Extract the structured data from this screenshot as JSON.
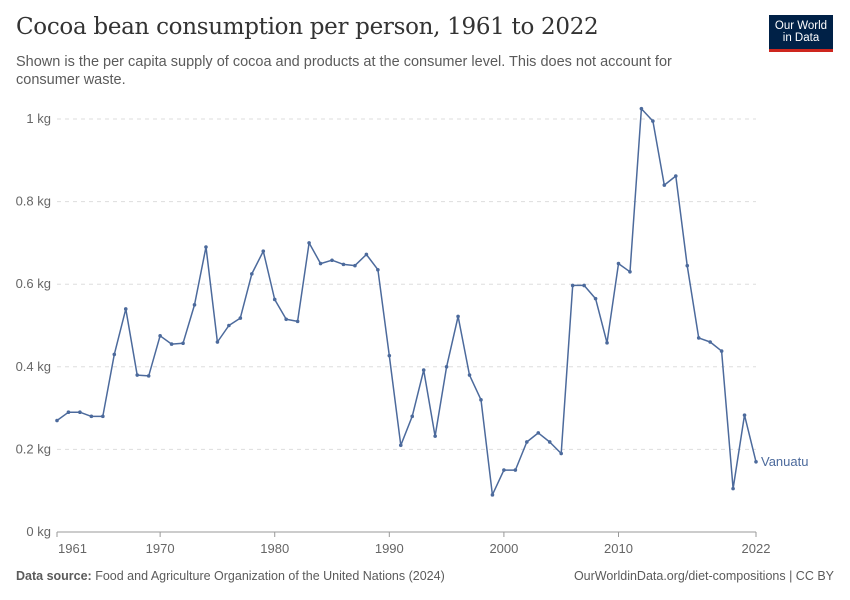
{
  "header": {
    "title": "Cocoa bean consumption per person, 1961 to 2022",
    "subtitle": "Shown is the per capita supply of cocoa and products at the consumer level. This does not account for consumer waste.",
    "logo_line1": "Our World",
    "logo_line2": "in Data"
  },
  "footer": {
    "source_label": "Data source:",
    "source_text": "Food and Agriculture Organization of the United Nations (2024)",
    "right_text": "OurWorldinData.org/diet-compositions | CC BY"
  },
  "colors": {
    "series": "#4c6a9c",
    "logo_bg": "#002147",
    "logo_accent": "#ce261e"
  },
  "chart_data": {
    "type": "line",
    "title": "Cocoa bean consumption per person, 1961 to 2022",
    "xlabel": "",
    "ylabel": "",
    "xlim": [
      1961,
      2022
    ],
    "ylim": [
      0,
      1
    ],
    "x_ticks": [
      1961,
      1970,
      1980,
      1990,
      2000,
      2010,
      2022
    ],
    "y_ticks": [
      {
        "value": 0,
        "label": "0 kg"
      },
      {
        "value": 0.2,
        "label": "0.2 kg"
      },
      {
        "value": 0.4,
        "label": "0.4 kg"
      },
      {
        "value": 0.6,
        "label": "0.6 kg"
      },
      {
        "value": 0.8,
        "label": "0.8 kg"
      },
      {
        "value": 1,
        "label": "1 kg"
      }
    ],
    "grid": true,
    "legend": "end-of-line label",
    "series": [
      {
        "name": "Vanuatu",
        "x": [
          1961,
          1962,
          1963,
          1964,
          1965,
          1966,
          1967,
          1968,
          1969,
          1970,
          1971,
          1972,
          1973,
          1974,
          1975,
          1976,
          1977,
          1978,
          1979,
          1980,
          1981,
          1982,
          1983,
          1984,
          1985,
          1986,
          1987,
          1988,
          1989,
          1990,
          1991,
          1992,
          1993,
          1994,
          1995,
          1996,
          1997,
          1998,
          1999,
          2000,
          2001,
          2002,
          2003,
          2004,
          2005,
          2006,
          2007,
          2008,
          2009,
          2010,
          2011,
          2012,
          2013,
          2014,
          2015,
          2016,
          2017,
          2018,
          2019,
          2020,
          2021,
          2022
        ],
        "y": [
          0.27,
          0.29,
          0.29,
          0.28,
          0.28,
          0.43,
          0.54,
          0.38,
          0.378,
          0.475,
          0.455,
          0.457,
          0.55,
          0.69,
          0.46,
          0.5,
          0.518,
          0.625,
          0.68,
          0.563,
          0.515,
          0.51,
          0.7,
          0.65,
          0.658,
          0.648,
          0.645,
          0.672,
          0.635,
          0.427,
          0.21,
          0.28,
          0.392,
          0.232,
          0.4,
          0.522,
          0.38,
          0.32,
          0.09,
          0.15,
          0.15,
          0.218,
          0.24,
          0.218,
          0.19,
          0.597,
          0.597,
          0.565,
          0.458,
          0.65,
          0.63,
          1.025,
          0.995,
          0.84,
          0.862,
          0.645,
          0.47,
          0.46,
          0.438,
          0.105,
          0.283,
          0.17
        ]
      }
    ]
  }
}
